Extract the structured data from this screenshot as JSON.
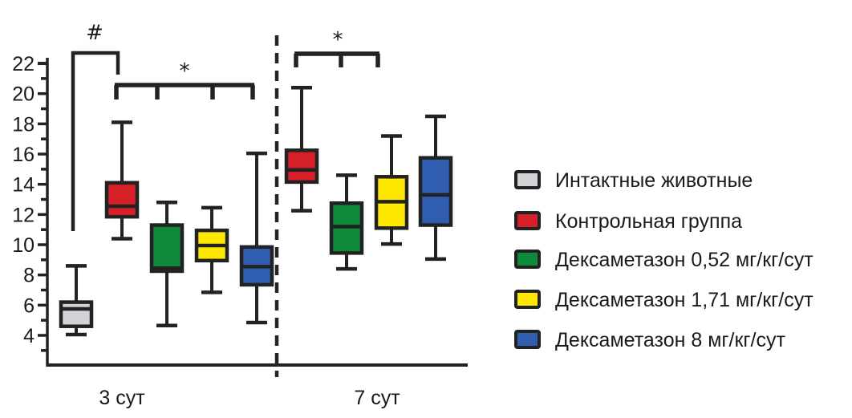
{
  "chart_data": {
    "type": "box",
    "title": "",
    "xlabel": "",
    "ylabel": "",
    "ylim": [
      2,
      22
    ],
    "y_ticks": [
      "4",
      "6",
      "8",
      "10",
      "12",
      "14",
      "16",
      "18",
      "20",
      "22"
    ],
    "y_tick_values": [
      4,
      6,
      8,
      10,
      12,
      14,
      16,
      18,
      20,
      22
    ],
    "grid": false,
    "legend_position": "right",
    "categories": [
      "3 сут",
      "7 сут"
    ],
    "series": [
      {
        "name": "Интактные животные",
        "color": "#d2d2d8",
        "boxes": [
          {
            "category": "3 сут",
            "min": 4.05,
            "q1": 4.6,
            "median": 5.75,
            "q3": 6.2,
            "max": 8.6
          }
        ]
      },
      {
        "name": "Контрольная группа",
        "color": "#d61f26",
        "boxes": [
          {
            "category": "3 сут",
            "min": 10.4,
            "q1": 11.85,
            "median": 12.55,
            "q3": 14.1,
            "max": 18.1
          },
          {
            "category": "7 сут",
            "min": 12.25,
            "q1": 14.15,
            "median": 14.95,
            "q3": 16.25,
            "max": 20.4
          }
        ]
      },
      {
        "name": "Дексаметазон 0,52 мг/кг/сут",
        "color": "#0f8a3a",
        "boxes": [
          {
            "category": "3 сут",
            "min": 4.65,
            "q1": 8.25,
            "median": 8.45,
            "q3": 11.3,
            "max": 12.8
          },
          {
            "category": "7 сут",
            "min": 8.4,
            "q1": 9.45,
            "median": 11.2,
            "q3": 12.75,
            "max": 14.6
          }
        ]
      },
      {
        "name": "Дексаметазон 1,71 мг/кг/сут",
        "color": "#ffe800",
        "boxes": [
          {
            "category": "3 сут",
            "min": 6.85,
            "q1": 8.95,
            "median": 9.95,
            "q3": 10.95,
            "max": 12.45
          },
          {
            "category": "7 сут",
            "min": 10.05,
            "q1": 11.1,
            "median": 12.85,
            "q3": 14.5,
            "max": 17.2
          }
        ]
      },
      {
        "name": "Дексаметазон 8 мг/кг/сут",
        "color": "#2f5eb0",
        "boxes": [
          {
            "category": "3 сут",
            "min": 4.85,
            "q1": 7.35,
            "median": 8.55,
            "q3": 9.85,
            "max": 16.05
          },
          {
            "category": "7 сут",
            "min": 9.05,
            "q1": 11.3,
            "median": 13.3,
            "q3": 15.75,
            "max": 18.5
          }
        ]
      }
    ],
    "annotations": [
      {
        "symbol": "#",
        "category": "3 сут",
        "groups": [
          "Интактные животные",
          "Контрольная группа"
        ]
      },
      {
        "symbol": "*",
        "category": "3 сут",
        "groups": [
          "Контрольная группа",
          "Дексаметазон 0,52 мг/кг/сут",
          "Дексаметазон 1,71 мг/кг/сут",
          "Дексаметазон 8 мг/кг/сут"
        ]
      },
      {
        "symbol": "*",
        "category": "7 сут",
        "groups": [
          "Контрольная группа",
          "Дексаметазон 0,52 мг/кг/сут",
          "Дексаметазон 1,71 мг/кг/сут"
        ]
      }
    ]
  }
}
